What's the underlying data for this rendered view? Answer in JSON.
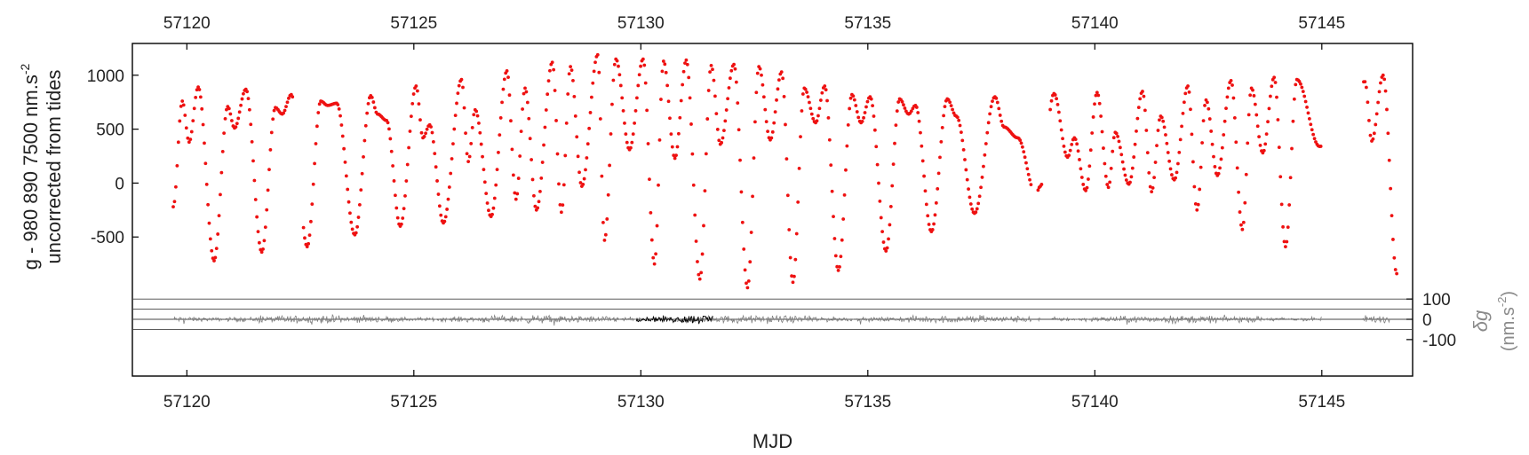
{
  "chart_data": [
    {
      "type": "scatter",
      "panel": "upper",
      "ylabel_line1": "g - 980 890 7500 nm.s",
      "ylabel_sup": "-2",
      "ylabel_line2": "uncorrected from tides",
      "xlabel": "MJD",
      "xlim": [
        57118.8,
        57147.0
      ],
      "ylim": [
        -1000,
        1270
      ],
      "xticks": [
        57120,
        57125,
        57130,
        57135,
        57140,
        57145
      ],
      "xtick_labels": [
        "57120",
        "57125",
        "57130",
        "57135",
        "57140",
        "57145"
      ],
      "yticks": [
        -500,
        0,
        500,
        1000
      ],
      "ytick_labels": [
        "-500",
        "0",
        "500",
        "1000"
      ],
      "series": [
        {
          "color": "#ee1111",
          "data_gaps": [
            [
              57122.35,
              57122.55
            ],
            [
              57138.6,
              57138.75
            ],
            [
              57138.85,
              57139.0
            ],
            [
              57145.0,
              57145.9
            ]
          ],
          "peaks": [
            [
              57119.7,
              -220
            ],
            [
              57119.9,
              760
            ],
            [
              57120.05,
              380
            ],
            [
              57120.25,
              890
            ],
            [
              57120.6,
              -720
            ],
            [
              57120.9,
              710
            ],
            [
              57121.05,
              510
            ],
            [
              57121.3,
              870
            ],
            [
              57121.65,
              -640
            ],
            [
              57121.95,
              700
            ],
            [
              57122.1,
              640
            ],
            [
              57122.3,
              820
            ],
            [
              57122.65,
              -590
            ],
            [
              57122.95,
              760
            ],
            [
              57123.1,
              720
            ],
            [
              57123.3,
              740
            ],
            [
              57123.7,
              -480
            ],
            [
              57124.05,
              810
            ],
            [
              57124.2,
              640
            ],
            [
              57124.4,
              580
            ],
            [
              57124.7,
              -400
            ],
            [
              57125.05,
              900
            ],
            [
              57125.2,
              420
            ],
            [
              57125.35,
              540
            ],
            [
              57125.65,
              -370
            ],
            [
              57126.05,
              960
            ],
            [
              57126.2,
              200
            ],
            [
              57126.35,
              680
            ],
            [
              57126.7,
              -310
            ],
            [
              57127.05,
              1040
            ],
            [
              57127.25,
              -150
            ],
            [
              57127.45,
              880
            ],
            [
              57127.7,
              -250
            ],
            [
              57128.05,
              1120
            ],
            [
              57128.25,
              -270
            ],
            [
              57128.45,
              1080
            ],
            [
              57128.7,
              -30
            ],
            [
              57129.05,
              1190
            ],
            [
              57129.2,
              -530
            ],
            [
              57129.45,
              1150
            ],
            [
              57129.75,
              310
            ],
            [
              57130.05,
              1150
            ],
            [
              57130.3,
              -750
            ],
            [
              57130.5,
              1130
            ],
            [
              57130.75,
              230
            ],
            [
              57131.0,
              1140
            ],
            [
              57131.3,
              -890
            ],
            [
              57131.55,
              1090
            ],
            [
              57131.75,
              360
            ],
            [
              57132.05,
              1100
            ],
            [
              57132.35,
              -970
            ],
            [
              57132.6,
              1080
            ],
            [
              57132.85,
              400
            ],
            [
              57133.1,
              1030
            ],
            [
              57133.35,
              -920
            ],
            [
              57133.6,
              880
            ],
            [
              57133.85,
              560
            ],
            [
              57134.05,
              900
            ],
            [
              57134.35,
              -810
            ],
            [
              57134.65,
              820
            ],
            [
              57134.85,
              560
            ],
            [
              57135.05,
              800
            ],
            [
              57135.4,
              -630
            ],
            [
              57135.7,
              780
            ],
            [
              57135.9,
              640
            ],
            [
              57136.05,
              720
            ],
            [
              57136.4,
              -450
            ],
            [
              57136.75,
              780
            ],
            [
              57136.95,
              620
            ],
            [
              57137.35,
              -280
            ],
            [
              57137.8,
              800
            ],
            [
              57138.0,
              520
            ],
            [
              57138.3,
              420
            ],
            [
              57138.7,
              -100
            ],
            [
              57138.8,
              -30
            ],
            [
              57139.1,
              830
            ],
            [
              57139.4,
              240
            ],
            [
              57139.55,
              420
            ],
            [
              57139.8,
              -70
            ],
            [
              57140.05,
              840
            ],
            [
              57140.3,
              -40
            ],
            [
              57140.45,
              470
            ],
            [
              57140.75,
              -10
            ],
            [
              57141.05,
              850
            ],
            [
              57141.25,
              -80
            ],
            [
              57141.45,
              620
            ],
            [
              57141.75,
              30
            ],
            [
              57142.05,
              900
            ],
            [
              57142.25,
              -250
            ],
            [
              57142.45,
              770
            ],
            [
              57142.7,
              70
            ],
            [
              57143.0,
              950
            ],
            [
              57143.25,
              -430
            ],
            [
              57143.45,
              880
            ],
            [
              57143.7,
              280
            ],
            [
              57143.95,
              980
            ],
            [
              57144.2,
              -590
            ],
            [
              57144.45,
              960
            ],
            [
              57144.95,
              340
            ],
            [
              57145.95,
              940
            ],
            [
              57146.1,
              390
            ],
            [
              57146.35,
              1000
            ],
            [
              57146.65,
              -840
            ]
          ]
        }
      ]
    },
    {
      "type": "line",
      "panel": "lower",
      "ylabel_symbol": "δg",
      "ylabel_unit": "(nm.s",
      "ylabel_sup": "-2",
      "ylabel_close": ")",
      "ylim": [
        -140,
        140
      ],
      "yticks": [
        100,
        0,
        -100
      ],
      "ytick_labels": [
        "100",
        "0",
        "-100"
      ],
      "hlines": [
        100,
        50,
        0,
        -50
      ],
      "series": [
        {
          "color": "#808080",
          "x_start": 57119.7,
          "x_end": 57146.5,
          "typical_amplitude": 10,
          "segments": [
            [
              57119.7,
              57138.6
            ],
            [
              57138.75,
              57138.8
            ],
            [
              57139.05,
              57145.0
            ],
            [
              57145.9,
              57146.5
            ]
          ]
        },
        {
          "color": "#000000",
          "x_start": 57129.9,
          "x_end": 57131.6,
          "typical_amplitude": 14
        }
      ]
    }
  ]
}
